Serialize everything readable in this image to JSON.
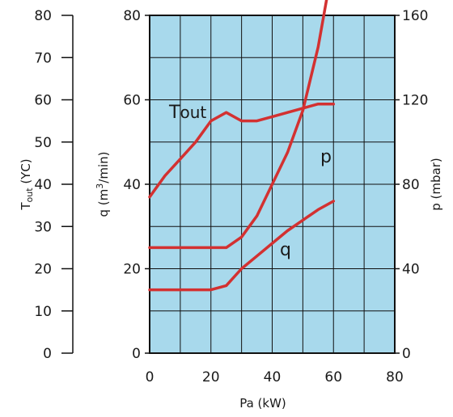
{
  "chart_data": {
    "type": "line",
    "plot_background": "#a8d9ec",
    "line_color": "#d33131",
    "xlabel": "Pa (kW)",
    "xlim": [
      0,
      80
    ],
    "x_ticks": [
      "0",
      "20",
      "40",
      "60",
      "80"
    ],
    "axes": {
      "tout": {
        "label": "Tout (ΥC)",
        "lim": [
          0,
          80
        ],
        "ticks": [
          "0",
          "10",
          "20",
          "30",
          "40",
          "50",
          "60",
          "70",
          "80"
        ]
      },
      "q": {
        "label": "q (m3/min)",
        "lim": [
          0,
          80
        ],
        "ticks": [
          "0",
          "20",
          "40",
          "60",
          "80"
        ]
      },
      "p": {
        "label": "p (mbar)",
        "lim": [
          0,
          160
        ],
        "ticks": [
          "0",
          "40",
          "80",
          "120",
          "160"
        ]
      }
    },
    "grid": true,
    "series": [
      {
        "name": "Tout",
        "axis": "tout",
        "x": [
          0,
          5,
          10,
          15,
          20,
          25,
          30,
          35,
          40,
          45,
          50,
          55,
          60
        ],
        "y": [
          37,
          42,
          46,
          50,
          55,
          57,
          55,
          55,
          56,
          57,
          58,
          59,
          59
        ]
      },
      {
        "name": "p",
        "axis": "p",
        "x": [
          0,
          5,
          10,
          15,
          20,
          25,
          30,
          35,
          40,
          45,
          50,
          55,
          60
        ],
        "y": [
          50,
          50,
          50,
          50,
          50,
          50,
          55,
          65,
          80,
          95,
          115,
          145,
          186
        ]
      },
      {
        "name": "q",
        "axis": "q",
        "x": [
          0,
          5,
          10,
          15,
          20,
          25,
          30,
          35,
          40,
          45,
          50,
          55,
          60
        ],
        "y": [
          15,
          15,
          15,
          15,
          15,
          16,
          20,
          23,
          26,
          29,
          31.5,
          34,
          36
        ]
      }
    ]
  }
}
